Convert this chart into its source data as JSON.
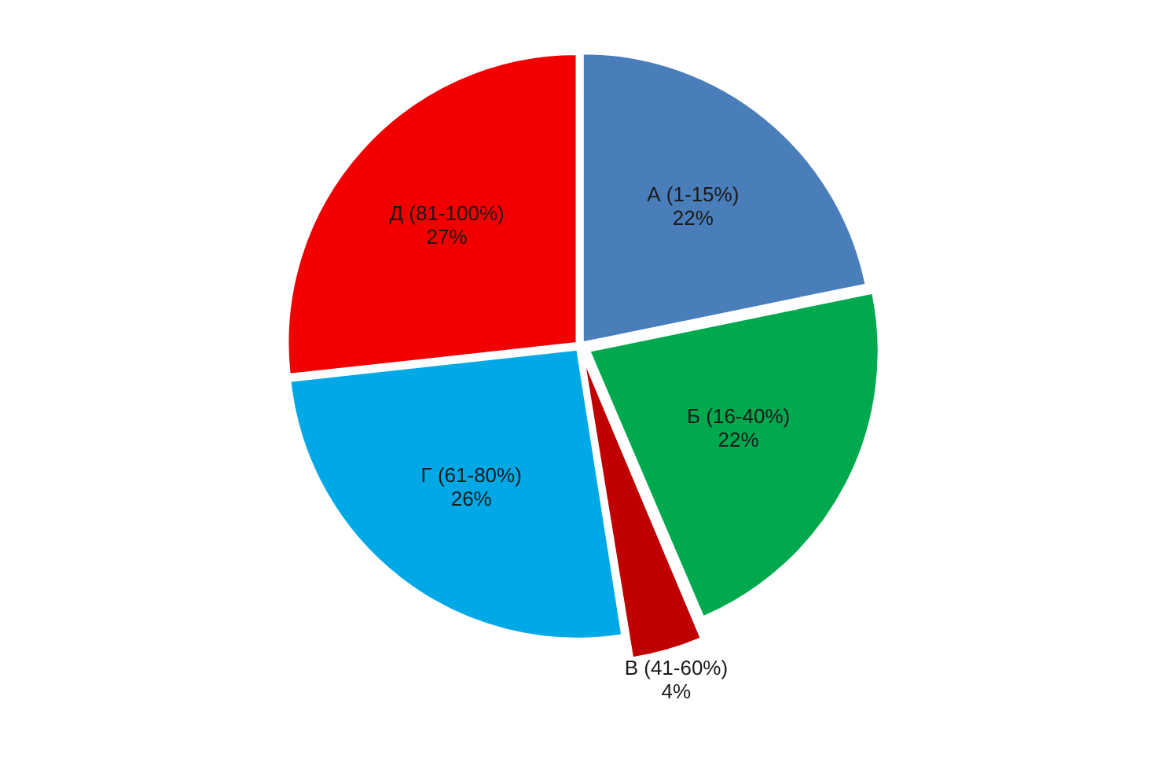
{
  "chart_data": {
    "type": "pie",
    "categories": [
      "А (1-15%)",
      "Б (16-40%)",
      "В (41-60%)",
      "Г (61-80%)",
      "Д (81-100%)"
    ],
    "values": [
      22,
      22,
      4,
      26,
      27
    ],
    "value_labels": [
      "22%",
      "22%",
      "4%",
      "26%",
      "27%"
    ],
    "colors": [
      "#4a7ebb",
      "#00a84e",
      "#c00000",
      "#00a9e6",
      "#f20000"
    ]
  }
}
